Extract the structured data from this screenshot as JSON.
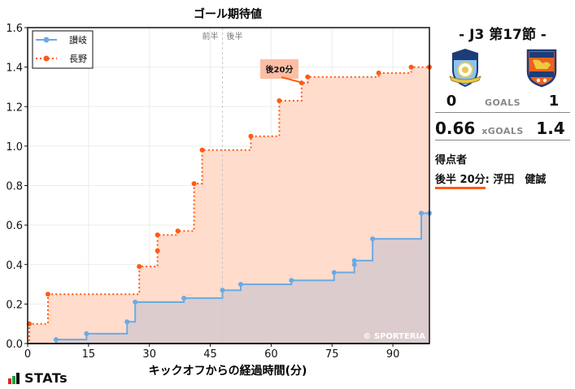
{
  "chart_data": {
    "type": "line",
    "subtype": "step",
    "title": "ゴール期待値",
    "xlabel": "キックオフからの経過時間(分)",
    "ylabel": "",
    "xlim": [
      0,
      99
    ],
    "ylim": [
      0.0,
      1.6
    ],
    "x_ticks": [
      0,
      15,
      30,
      45,
      60,
      75,
      90
    ],
    "y_ticks": [
      0.0,
      0.2,
      0.4,
      0.6,
      0.8,
      1.0,
      1.2,
      1.4,
      1.6
    ],
    "y_tick_labels": [
      "0.0",
      "0.2",
      "0.4",
      "0.6",
      "0.8",
      "1.0",
      "1.2",
      "1.4",
      "1.6"
    ],
    "grid": true,
    "legend_position": "upper left",
    "halftime_marker": {
      "x": 48,
      "left_label": "前半",
      "right_label": "後半"
    },
    "annotation": {
      "label": "後20分",
      "x": 67.5,
      "y": 1.32
    },
    "watermark": "© SPORTERIA",
    "series": [
      {
        "name": "讃岐",
        "color": "#6aaae4",
        "fill": "#dcccce",
        "style": "solid",
        "points": [
          [
            0,
            0.0
          ],
          [
            7,
            0.02
          ],
          [
            14.5,
            0.05
          ],
          [
            24.5,
            0.11
          ],
          [
            26.5,
            0.21
          ],
          [
            38.5,
            0.23
          ],
          [
            48,
            0.27
          ],
          [
            52.5,
            0.3
          ],
          [
            65,
            0.32
          ],
          [
            75.5,
            0.36
          ],
          [
            80.5,
            0.4
          ],
          [
            80.5,
            0.42
          ],
          [
            85,
            0.53
          ],
          [
            97,
            0.66
          ],
          [
            99,
            0.66
          ]
        ]
      },
      {
        "name": "長野",
        "color": "#ff5a14",
        "fill": "#ffdccc",
        "style": "dotted",
        "points": [
          [
            0,
            0.0
          ],
          [
            0.4,
            0.1
          ],
          [
            5,
            0.25
          ],
          [
            27.5,
            0.39
          ],
          [
            32,
            0.47
          ],
          [
            32,
            0.55
          ],
          [
            37,
            0.57
          ],
          [
            41,
            0.81
          ],
          [
            43,
            0.98
          ],
          [
            55,
            1.05
          ],
          [
            62,
            1.23
          ],
          [
            67.5,
            1.32
          ],
          [
            69,
            1.35
          ],
          [
            86.5,
            1.37
          ],
          [
            94.5,
            1.4
          ],
          [
            99,
            1.4
          ]
        ]
      }
    ]
  },
  "side": {
    "round": "-  J3 第17節  -",
    "home_team": "讃岐",
    "away_team": "長野",
    "goals_label": "GOALS",
    "home_goals": "0",
    "away_goals": "1",
    "xgoals_label": "xGOALS",
    "home_xg": "0.66",
    "away_xg": "1.4",
    "scorers_title": "得点者",
    "scorers": [
      {
        "time": "後半 20分",
        "name": ": 浮田　健誠"
      }
    ]
  },
  "brand": {
    "name": "STATs"
  }
}
